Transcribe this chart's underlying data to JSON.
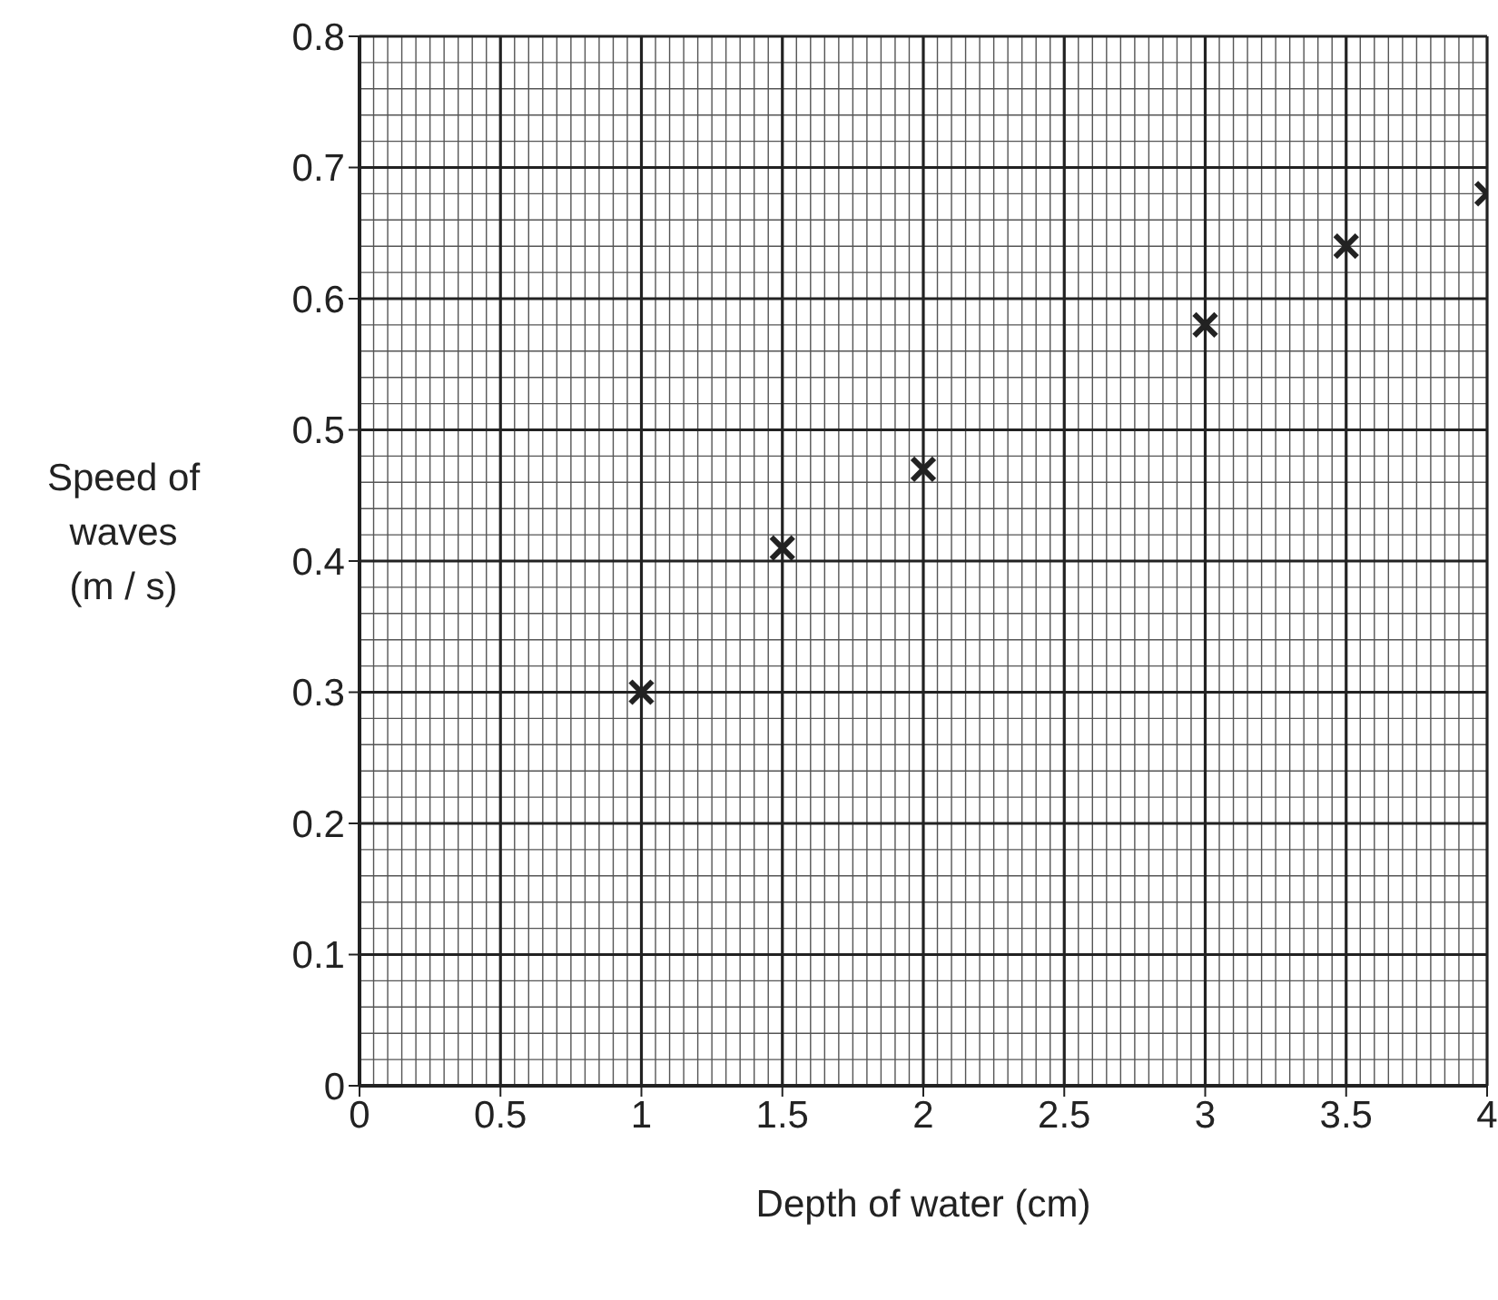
{
  "chart_data": {
    "type": "scatter",
    "xlabel": "Depth of water (cm)",
    "ylabel": "Speed of waves (m / s)",
    "x": [
      1,
      1.5,
      2,
      3,
      3.5,
      4
    ],
    "series": [
      {
        "color": "#222222",
        "values": [
          0.3,
          0.41,
          0.47,
          0.58,
          0.64,
          0.68
        ]
      }
    ],
    "xlim": [
      0,
      4
    ],
    "xticks": [
      0,
      0.5,
      1,
      1.5,
      2,
      2.5,
      3,
      3.5,
      4
    ],
    "ylim": [
      0,
      0.8
    ],
    "yticks": [
      0,
      0.1,
      0.2,
      0.3,
      0.4,
      0.5,
      0.6,
      0.7,
      0.8
    ],
    "grid": true,
    "marker": "cross",
    "legend": false
  }
}
